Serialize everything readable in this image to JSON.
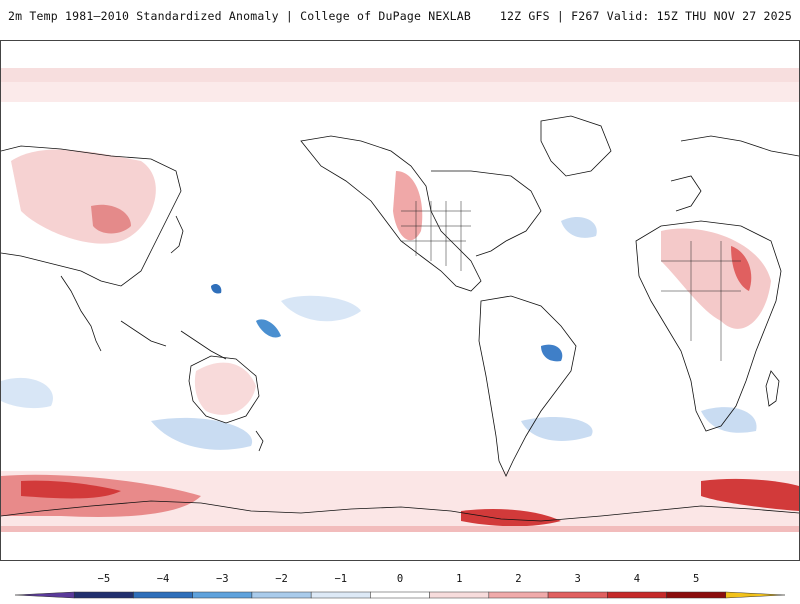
{
  "header": {
    "title_left": "2m Temp 1981–2010 Standardized Anomaly | College of DuPage NEXLAB",
    "title_right": "12Z GFS | F267 Valid: 15Z THU NOV 27 2025"
  },
  "colorbar": {
    "ticks": [
      "−5",
      "−4",
      "−3",
      "−2",
      "−1",
      "0",
      "1",
      "2",
      "3",
      "4",
      "5"
    ],
    "colors": [
      "#5a3a9a",
      "#22306e",
      "#2f6fba",
      "#5fa2dc",
      "#a9cbeb",
      "#dde9f6",
      "#ffffff",
      "#f7dcdc",
      "#f0aaaa",
      "#e06060",
      "#c52a2a",
      "#8b0d0d",
      "#f2c21a"
    ]
  },
  "map": {
    "land_color": "#ffffff",
    "warm_color": "#f4c9c9",
    "cold_color": "#c9dcf2"
  }
}
